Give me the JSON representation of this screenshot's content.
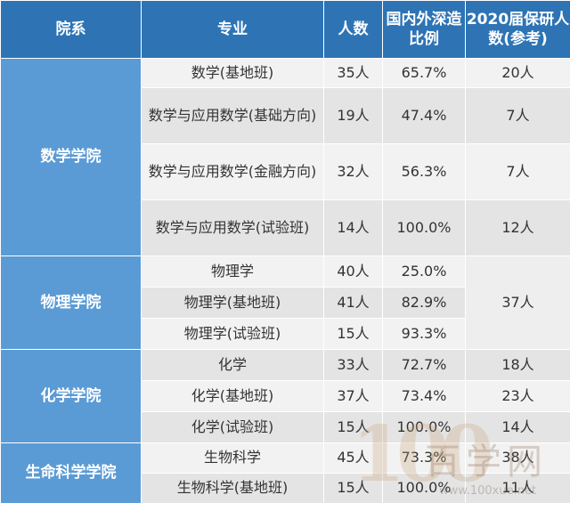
{
  "header": {
    "dept": "院系",
    "major": "专业",
    "count": "人数",
    "ratio": "国内外深造比例",
    "recommend": "2020届保研人数(参考)"
  },
  "departments": [
    {
      "name": "数学学院"
    },
    {
      "name": "物理学院"
    },
    {
      "name": "化学学院"
    },
    {
      "name": "生命科学学院"
    }
  ],
  "rows": [
    {
      "major": "数学(基地班)",
      "count": "35人",
      "ratio": "65.7%",
      "recommend": "20人"
    },
    {
      "major": "数学与应用数学(基础方向)",
      "count": "19人",
      "ratio": "47.4%",
      "recommend": "7人"
    },
    {
      "major": "数学与应用数学(金融方向)",
      "count": "32人",
      "ratio": "56.3%",
      "recommend": "7人"
    },
    {
      "major": "数学与应用数学(试验班)",
      "count": "14人",
      "ratio": "100.0%",
      "recommend": "12人"
    },
    {
      "major": "物理学",
      "count": "40人",
      "ratio": "25.0%",
      "recommend": "37人"
    },
    {
      "major": "物理学(基地班)",
      "count": "41人",
      "ratio": "82.9%"
    },
    {
      "major": "物理学(试验班)",
      "count": "15人",
      "ratio": "93.3%"
    },
    {
      "major": "化学",
      "count": "33人",
      "ratio": "72.7%",
      "recommend": "18人"
    },
    {
      "major": "化学(基地班)",
      "count": "37人",
      "ratio": "73.4%",
      "recommend": "23人"
    },
    {
      "major": "化学(试验班)",
      "count": "15人",
      "ratio": "100.0%",
      "recommend": "14人"
    },
    {
      "major": "生物科学",
      "count": "45人",
      "ratio": "73.3%",
      "recommend": "38人"
    },
    {
      "major": "生物科学(基地班)",
      "count": "15人",
      "ratio": "100.0%",
      "recommend": "11人"
    }
  ],
  "watermark": {
    "logo": "100",
    "text": "百学网",
    "url": "www.100xue.net"
  },
  "colors": {
    "header": "#2e74b5",
    "dept": "#5b9bd5",
    "row_light": "#f2f2f2",
    "row_dark": "#e4e4e4"
  }
}
